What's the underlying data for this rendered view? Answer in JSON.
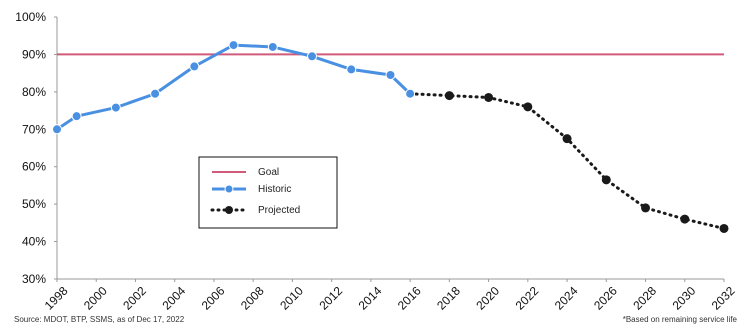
{
  "chart_data": {
    "type": "line",
    "x_ticks": [
      "1998",
      "2000",
      "2002",
      "2004",
      "2006",
      "2008",
      "2010",
      "2012",
      "2014",
      "2016",
      "2018",
      "2020",
      "2022",
      "2024",
      "2026",
      "2028",
      "2030",
      "2032"
    ],
    "y_ticks": [
      "100%",
      "90%",
      "80%",
      "70%",
      "60%",
      "50%",
      "40%",
      "30%"
    ],
    "xlim": [
      1998,
      2032
    ],
    "ylim": [
      30,
      100
    ],
    "grid": false,
    "legend_position": "center-left",
    "colors": {
      "goal": "#d05a7a",
      "historic": "#4a90e2",
      "projected": "#1a1a1a"
    },
    "series": [
      {
        "name": "Goal",
        "style": "solid",
        "color": "#d05a7a",
        "points": [
          {
            "x": 1998,
            "y": 90
          },
          {
            "x": 2032,
            "y": 90
          }
        ]
      },
      {
        "name": "Historic",
        "style": "solid",
        "color": "#4a90e2",
        "points": [
          {
            "x": 1998,
            "y": 70
          },
          {
            "x": 1999,
            "y": 73.5
          },
          {
            "x": 2001,
            "y": 75.8
          },
          {
            "x": 2003,
            "y": 79.5
          },
          {
            "x": 2005,
            "y": 86.8
          },
          {
            "x": 2007,
            "y": 92.5
          },
          {
            "x": 2009,
            "y": 92
          },
          {
            "x": 2011,
            "y": 89.5
          },
          {
            "x": 2013,
            "y": 86
          },
          {
            "x": 2015,
            "y": 84.5
          },
          {
            "x": 2016,
            "y": 79.5
          }
        ]
      },
      {
        "name": "Projected",
        "style": "dotted",
        "color": "#1a1a1a",
        "points": [
          {
            "x": 2016,
            "y": 79.5
          },
          {
            "x": 2018,
            "y": 79
          },
          {
            "x": 2020,
            "y": 78.5
          },
          {
            "x": 2022,
            "y": 76
          },
          {
            "x": 2024,
            "y": 67.5
          },
          {
            "x": 2026,
            "y": 56.5
          },
          {
            "x": 2028,
            "y": 49
          },
          {
            "x": 2030,
            "y": 46
          },
          {
            "x": 2032,
            "y": 43.5
          }
        ]
      }
    ],
    "source": "Source: MDOT, BTP, SSMS, as of Dec 17, 2022",
    "note": "*Based on remaining service life"
  }
}
